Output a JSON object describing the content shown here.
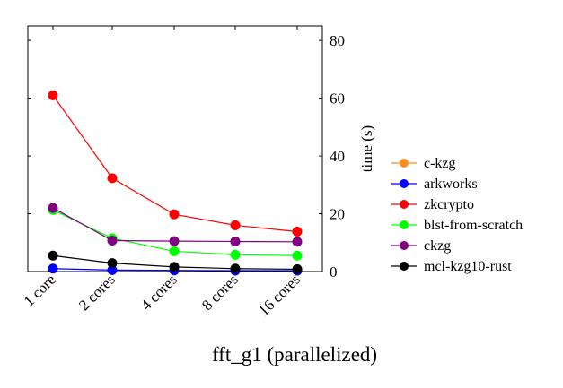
{
  "chart_data": {
    "type": "line",
    "title": "fft_g1 (parallelized)",
    "xlabel": "",
    "ylabel": "time (s)",
    "ylim": [
      0,
      85
    ],
    "yticks": [
      0,
      20,
      40,
      60,
      80
    ],
    "ytick_labels": [
      "0",
      "20",
      "40",
      "60",
      "80"
    ],
    "y_axis_side": "right",
    "categories": [
      "1 core",
      "2 cores",
      "4 cores",
      "8 cores",
      "16 cores"
    ],
    "legend_position": "right",
    "grid": false,
    "series": [
      {
        "name": "c-kzg",
        "color": "#ff8c1a",
        "values": [
          null,
          null,
          null,
          null,
          null
        ]
      },
      {
        "name": "arkworks",
        "color": "#0000ff",
        "values": [
          1.0,
          0.5,
          0.4,
          0.3,
          0.3
        ]
      },
      {
        "name": "zkcrypto",
        "color": "#ff0000",
        "values": [
          61.0,
          32.3,
          19.8,
          16.0,
          13.8
        ]
      },
      {
        "name": "blst-from-scratch",
        "color": "#00ff00",
        "values": [
          21.3,
          11.5,
          7.0,
          5.8,
          5.5
        ]
      },
      {
        "name": "ckzg",
        "color": "#800080",
        "values": [
          22.0,
          10.7,
          10.5,
          10.4,
          10.3
        ]
      },
      {
        "name": "mcl-kzg10-rust",
        "color": "#000000",
        "values": [
          5.5,
          2.9,
          1.6,
          1.0,
          0.8
        ]
      }
    ]
  }
}
